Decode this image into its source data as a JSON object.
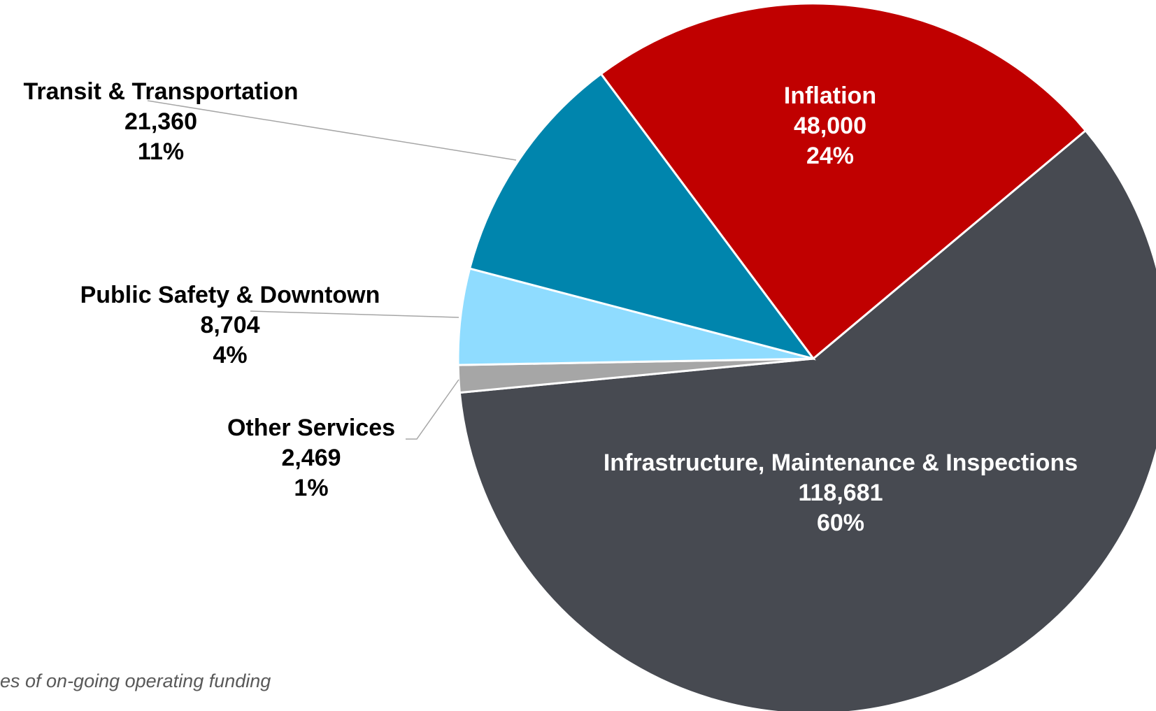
{
  "chart_data": {
    "type": "pie",
    "categories": [
      "Inflation",
      "Infrastructure, Maintenance & Inspections",
      "Other Services",
      "Public Safety & Downtown",
      "Transit & Transportation"
    ],
    "values": [
      48000,
      118681,
      2469,
      8704,
      21360
    ],
    "value_labels": [
      "48,000",
      "118,681",
      "2,469",
      "8,704",
      "21,360"
    ],
    "percent_labels": [
      "24%",
      "60%",
      "1%",
      "4%",
      "11%"
    ],
    "colors": [
      "#c00000",
      "#474a51",
      "#a6a6a6",
      "#8fdcff",
      "#0085ad"
    ],
    "footnote": "es of on-going operating funding"
  }
}
